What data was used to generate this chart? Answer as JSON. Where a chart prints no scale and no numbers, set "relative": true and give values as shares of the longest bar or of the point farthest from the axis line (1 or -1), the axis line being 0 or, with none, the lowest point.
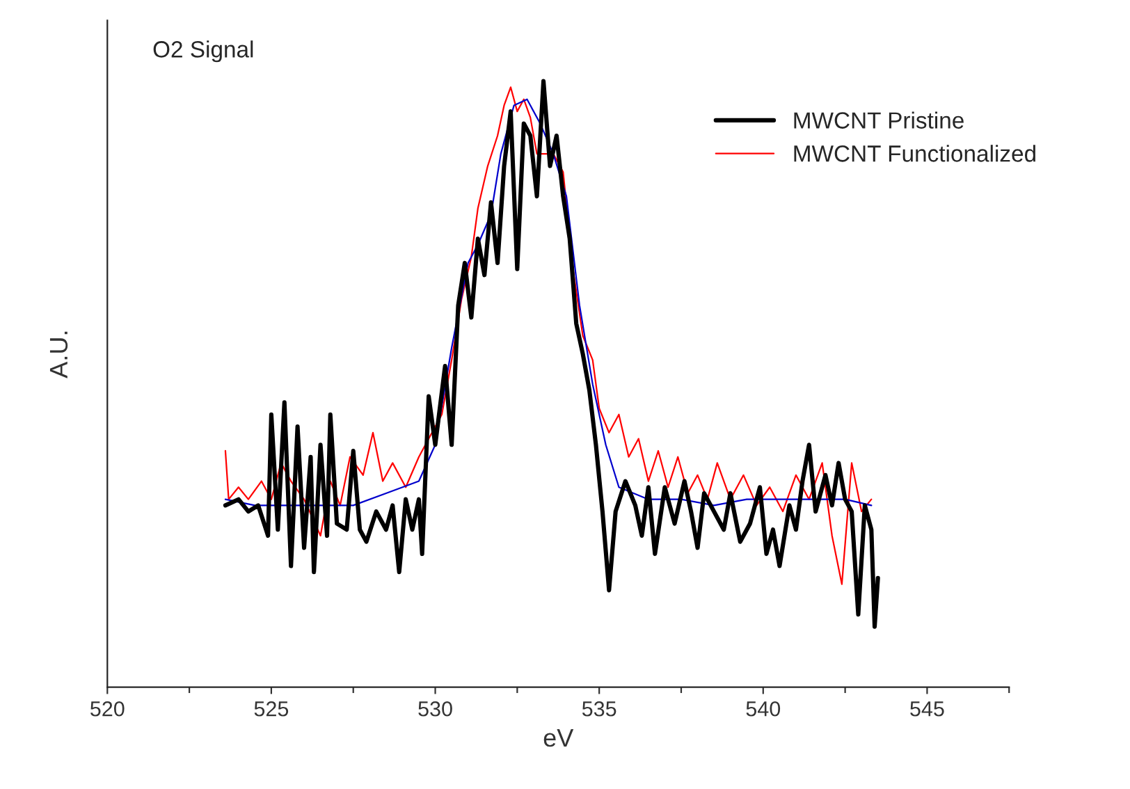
{
  "chart_data": {
    "type": "line",
    "title": "O2 Signal",
    "xlabel": "eV",
    "ylabel": "A.U.",
    "relative": true,
    "legend": "top right",
    "grid": false,
    "xlim": [
      520,
      547.5
    ],
    "xticks": [
      520,
      {
        "value": 522.5,
        "label": null
      },
      525,
      {
        "value": 527.5,
        "label": null
      },
      530,
      {
        "value": 532.5,
        "label": null
      },
      535,
      {
        "value": 537.5,
        "label": null
      },
      540,
      {
        "value": 542.5,
        "label": null
      },
      545,
      {
        "value": 547.5,
        "label": null
      }
    ],
    "series": [
      {
        "name": "MWCNT Pristine",
        "color": "#000000",
        "line_style": "solid",
        "x": [
          523.6,
          524.0,
          524.3,
          524.6,
          524.9,
          525.0,
          525.2,
          525.4,
          525.6,
          525.8,
          526.0,
          526.2,
          526.3,
          526.5,
          526.7,
          526.8,
          527.0,
          527.3,
          527.5,
          527.7,
          527.9,
          528.2,
          528.5,
          528.7,
          528.9,
          529.1,
          529.3,
          529.5,
          529.6,
          529.8,
          530.0,
          530.3,
          530.5,
          530.7,
          530.9,
          531.1,
          531.3,
          531.5,
          531.7,
          531.9,
          532.1,
          532.3,
          532.5,
          532.7,
          532.9,
          533.1,
          533.3,
          533.5,
          533.7,
          533.9,
          534.1,
          534.3,
          534.5,
          534.7,
          534.9,
          535.1,
          535.3,
          535.5,
          535.8,
          536.1,
          536.3,
          536.5,
          536.7,
          537.0,
          537.3,
          537.6,
          537.8,
          538.0,
          538.2,
          538.5,
          538.8,
          539.0,
          539.3,
          539.6,
          539.9,
          540.1,
          540.3,
          540.5,
          540.8,
          541.0,
          541.2,
          541.4,
          541.6,
          541.9,
          542.1,
          542.3,
          542.5,
          542.7,
          542.9,
          543.1,
          543.3,
          543.4,
          543.5
        ],
        "values": [
          0.3,
          0.31,
          0.29,
          0.3,
          0.25,
          0.45,
          0.26,
          0.47,
          0.2,
          0.43,
          0.23,
          0.38,
          0.19,
          0.4,
          0.25,
          0.45,
          0.27,
          0.26,
          0.39,
          0.26,
          0.24,
          0.29,
          0.26,
          0.3,
          0.19,
          0.31,
          0.26,
          0.31,
          0.22,
          0.48,
          0.4,
          0.53,
          0.4,
          0.63,
          0.7,
          0.61,
          0.74,
          0.68,
          0.8,
          0.7,
          0.86,
          0.95,
          0.69,
          0.93,
          0.91,
          0.81,
          1.0,
          0.86,
          0.91,
          0.81,
          0.74,
          0.6,
          0.55,
          0.49,
          0.4,
          0.29,
          0.16,
          0.29,
          0.34,
          0.3,
          0.25,
          0.33,
          0.22,
          0.33,
          0.27,
          0.34,
          0.29,
          0.23,
          0.32,
          0.29,
          0.26,
          0.32,
          0.24,
          0.27,
          0.33,
          0.22,
          0.26,
          0.2,
          0.3,
          0.26,
          0.34,
          0.4,
          0.29,
          0.35,
          0.3,
          0.37,
          0.31,
          0.29,
          0.12,
          0.3,
          0.26,
          0.1,
          0.18
        ]
      },
      {
        "name": "MWCNT Functionalized",
        "color": "#ff0000",
        "line_style": "solid",
        "x": [
          523.6,
          523.7,
          524.0,
          524.3,
          524.7,
          525.0,
          525.3,
          525.6,
          526.0,
          526.5,
          526.8,
          527.1,
          527.4,
          527.8,
          528.1,
          528.4,
          528.7,
          529.1,
          529.5,
          529.9,
          530.2,
          530.5,
          530.8,
          531.1,
          531.3,
          531.6,
          531.9,
          532.1,
          532.3,
          532.5,
          532.7,
          532.9,
          533.1,
          533.3,
          533.6,
          533.9,
          534.2,
          534.5,
          534.8,
          535.0,
          535.3,
          535.6,
          535.9,
          536.2,
          536.5,
          536.8,
          537.1,
          537.4,
          537.7,
          538.0,
          538.3,
          538.6,
          539.0,
          539.4,
          539.8,
          540.2,
          540.6,
          541.0,
          541.4,
          541.8,
          542.1,
          542.4,
          542.7,
          543.0,
          543.3
        ],
        "values": [
          0.39,
          0.31,
          0.33,
          0.31,
          0.34,
          0.31,
          0.37,
          0.34,
          0.31,
          0.25,
          0.34,
          0.3,
          0.38,
          0.35,
          0.42,
          0.34,
          0.37,
          0.33,
          0.38,
          0.42,
          0.45,
          0.54,
          0.64,
          0.71,
          0.79,
          0.86,
          0.91,
          0.96,
          0.99,
          0.95,
          0.97,
          0.94,
          0.88,
          null,
          0.88,
          0.85,
          0.69,
          0.58,
          0.54,
          0.46,
          0.42,
          0.45,
          0.38,
          0.41,
          0.34,
          0.39,
          0.33,
          0.38,
          0.32,
          0.35,
          0.31,
          0.37,
          0.31,
          0.35,
          0.3,
          0.33,
          0.29,
          0.35,
          0.31,
          0.37,
          0.25,
          0.17,
          0.37,
          0.29,
          0.31
        ]
      },
      {
        "color": "#0000cc",
        "line_style": "solid",
        "x": [
          523.6,
          524.5,
          525.5,
          526.5,
          527.5,
          528.5,
          529.5,
          530.0,
          530.5,
          531.0,
          531.3,
          531.7,
          532.0,
          532.4,
          532.8,
          533.2,
          533.6,
          534.0,
          534.4,
          534.8,
          535.2,
          535.6,
          536.5,
          537.5,
          538.5,
          539.5,
          540.5,
          541.5,
          542.5,
          543.3
        ],
        "values": [
          0.31,
          0.3,
          0.3,
          0.3,
          0.3,
          0.32,
          0.34,
          0.4,
          0.56,
          0.7,
          0.73,
          0.78,
          0.88,
          0.96,
          0.97,
          0.93,
          0.88,
          0.81,
          0.63,
          0.5,
          0.4,
          0.33,
          0.31,
          0.31,
          0.3,
          0.31,
          0.31,
          0.31,
          0.31,
          0.3
        ]
      }
    ]
  }
}
